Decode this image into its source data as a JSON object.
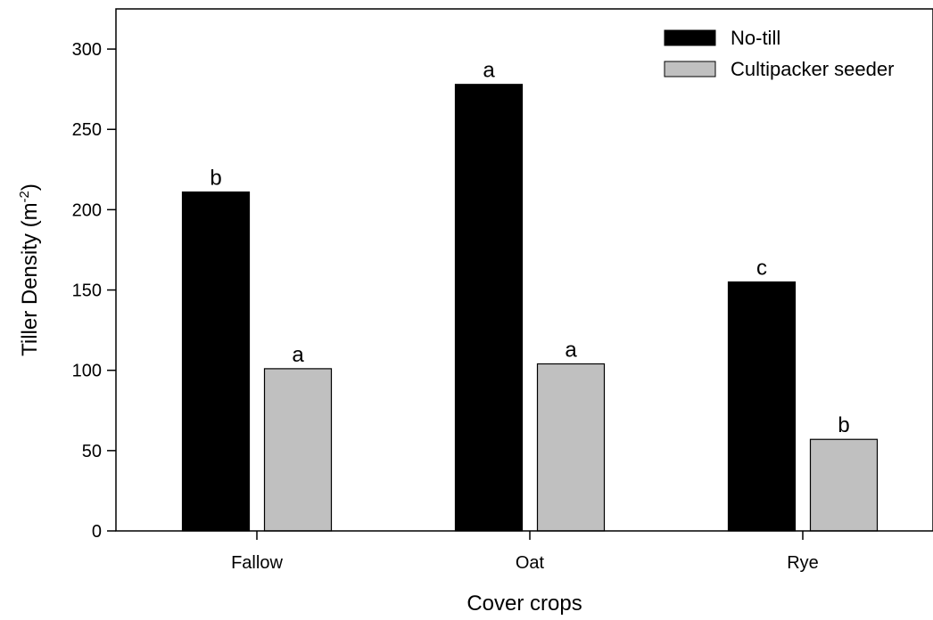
{
  "chart_data": {
    "type": "bar",
    "categories": [
      "Fallow",
      "Oat",
      "Rye"
    ],
    "series": [
      {
        "name": "No-till",
        "color": "#000000",
        "values": [
          211,
          278,
          155
        ],
        "labels": [
          "b",
          "a",
          "c"
        ]
      },
      {
        "name": "Cultipacker seeder",
        "color": "#c0c0c0",
        "values": [
          101,
          104,
          57
        ],
        "labels": [
          "a",
          "a",
          "b"
        ]
      }
    ],
    "xlabel": "Cover crops",
    "ylabel": "Tiller Density (m",
    "ylabel_superscript": "-2",
    "ylabel_suffix": ")",
    "ylim": [
      0,
      325
    ],
    "yticks": [
      0,
      50,
      100,
      150,
      200,
      250,
      300
    ],
    "legend_position": "top-right",
    "grid": false
  }
}
